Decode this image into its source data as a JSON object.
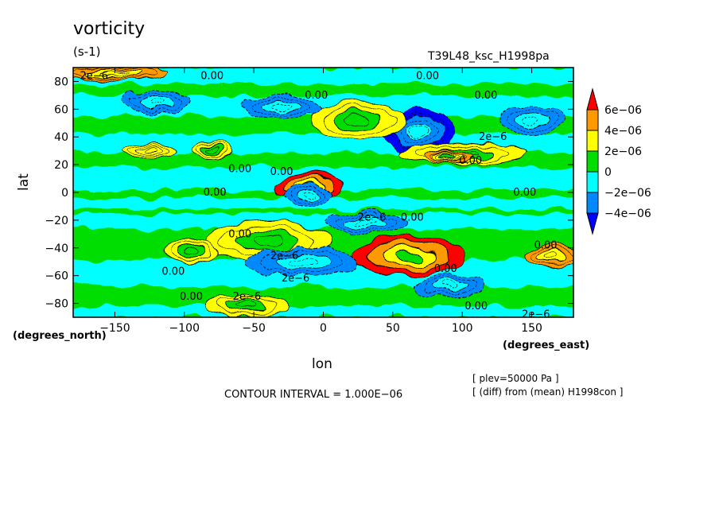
{
  "title": "vorticity",
  "units": "(s-1)",
  "run_label": "T39L48_ksc_H1998pa",
  "chart_data": {
    "type": "heatmap",
    "subtype": "filled-contour map",
    "xlabel": "lon",
    "x_units": "(degrees_east)",
    "ylabel": "lat",
    "y_units": "(degrees_north)",
    "xlim": [
      -180,
      180
    ],
    "ylim": [
      -90,
      90
    ],
    "x_ticks": [
      -150,
      -100,
      -50,
      0,
      50,
      100,
      150
    ],
    "y_ticks": [
      80,
      60,
      40,
      20,
      0,
      -20,
      -40,
      -60,
      -80
    ],
    "x_tick_labels": [
      "−150",
      "−100",
      "−50",
      "0",
      "50",
      "100",
      "150"
    ],
    "y_tick_labels": [
      "80",
      "60",
      "40",
      "20",
      "0",
      "−20",
      "−40",
      "−60",
      "−80"
    ],
    "colorbar": {
      "levels": [
        "6e−06",
        "4e−06",
        "2e−06",
        "0",
        "−2e−06",
        "−4e−06"
      ],
      "colors": [
        "#ff0000",
        "#ff9900",
        "#ffff00",
        "#00dd00",
        "#00ffff",
        "#0088ff",
        "#0000ff"
      ]
    },
    "contour_labels": [
      {
        "text": "2e−6",
        "lon": -165,
        "lat": 84
      },
      {
        "text": "0.00",
        "lon": -80,
        "lat": 84
      },
      {
        "text": "0.00",
        "lon": 75,
        "lat": 84
      },
      {
        "text": "0.00",
        "lon": -5,
        "lat": 70
      },
      {
        "text": "0.00",
        "lon": 117,
        "lat": 70
      },
      {
        "text": "2e−6",
        "lon": 122,
        "lat": 40
      },
      {
        "text": "0.00",
        "lon": 106,
        "lat": 23
      },
      {
        "text": "0.00",
        "lon": -60,
        "lat": 17
      },
      {
        "text": "0.00",
        "lon": -30,
        "lat": 15
      },
      {
        "text": "0.00",
        "lon": -78,
        "lat": 0
      },
      {
        "text": "0.00",
        "lon": 145,
        "lat": 0
      },
      {
        "text": "2e−6",
        "lon": 35,
        "lat": -18
      },
      {
        "text": "0.00",
        "lon": 64,
        "lat": -18
      },
      {
        "text": "0.00",
        "lon": -60,
        "lat": -30
      },
      {
        "text": "2e−6",
        "lon": -28,
        "lat": -46
      },
      {
        "text": "0.00",
        "lon": 160,
        "lat": -38
      },
      {
        "text": "0.00",
        "lon": -108,
        "lat": -57
      },
      {
        "text": "2e−6",
        "lon": -20,
        "lat": -62
      },
      {
        "text": "0.00",
        "lon": 88,
        "lat": -55
      },
      {
        "text": "0.00",
        "lon": -95,
        "lat": -75
      },
      {
        "text": "2e−6",
        "lon": -55,
        "lat": -75
      },
      {
        "text": "0.00",
        "lon": 110,
        "lat": -82
      },
      {
        "text": "2e−6",
        "lon": 153,
        "lat": -88
      }
    ],
    "blobs": [
      {
        "lon": -10,
        "lat": 4,
        "rx": 25,
        "ry": 10,
        "value": 7
      },
      {
        "lon": 62,
        "lat": -46,
        "rx": 40,
        "ry": 14,
        "value": 7
      },
      {
        "lon": -10,
        "lat": -2,
        "rx": 18,
        "ry": 8,
        "value": -4
      },
      {
        "lon": 68,
        "lat": 44,
        "rx": 26,
        "ry": 16,
        "value": -5
      },
      {
        "lon": 25,
        "lat": 52,
        "rx": 34,
        "ry": 14,
        "value": 3
      },
      {
        "lon": 100,
        "lat": 28,
        "rx": 45,
        "ry": 8,
        "value": 3
      },
      {
        "lon": 90,
        "lat": 26,
        "rx": 18,
        "ry": 5,
        "value": 5
      },
      {
        "lon": -40,
        "lat": -35,
        "rx": 45,
        "ry": 14,
        "value": 3
      },
      {
        "lon": -95,
        "lat": -42,
        "rx": 20,
        "ry": 8,
        "value": 3
      },
      {
        "lon": 165,
        "lat": -46,
        "rx": 20,
        "ry": 8,
        "value": 4
      },
      {
        "lon": -55,
        "lat": -82,
        "rx": 30,
        "ry": 8,
        "value": 3
      },
      {
        "lon": -150,
        "lat": 86,
        "rx": 40,
        "ry": 5,
        "value": 4
      },
      {
        "lon": -120,
        "lat": 65,
        "rx": 25,
        "ry": 8,
        "value": -3
      },
      {
        "lon": -30,
        "lat": 62,
        "rx": 30,
        "ry": 8,
        "value": -3
      },
      {
        "lon": 150,
        "lat": 52,
        "rx": 25,
        "ry": 10,
        "value": -3
      },
      {
        "lon": -15,
        "lat": -50,
        "rx": 40,
        "ry": 10,
        "value": -3
      },
      {
        "lon": 30,
        "lat": -22,
        "rx": 30,
        "ry": 8,
        "value": -3
      },
      {
        "lon": 90,
        "lat": -68,
        "rx": 25,
        "ry": 8,
        "value": -3
      },
      {
        "lon": -80,
        "lat": 30,
        "rx": 15,
        "ry": 6,
        "value": 3
      },
      {
        "lon": -125,
        "lat": 30,
        "rx": 20,
        "ry": 5,
        "value": 2
      }
    ]
  },
  "footer": {
    "contour_interval": "CONTOUR INTERVAL = 1.000E−06",
    "plev": "[ plev=50000 Pa ]",
    "diff": "[ (diff) from (mean) H1998con ]"
  }
}
